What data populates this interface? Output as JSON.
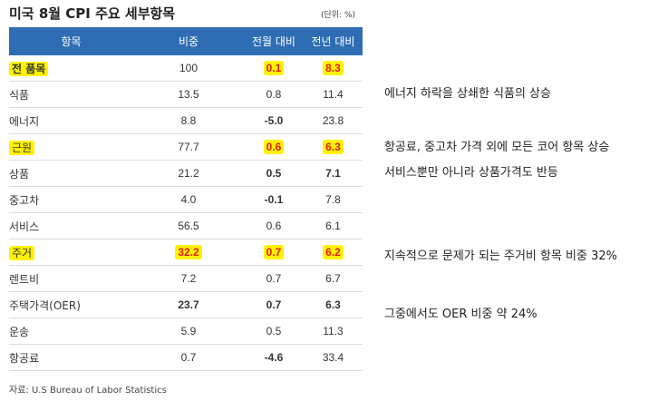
{
  "title": "미국 8월 CPI 주요 세부항목",
  "unit": "(단위: %)",
  "headers": [
    "항목",
    "비중",
    "전월 대비",
    "전년 대비"
  ],
  "rows": [
    {
      "item": "전 품목",
      "weight": "100",
      "mom": "0.1",
      "yoy": "8.3"
    },
    {
      "item": "식품",
      "weight": "13.5",
      "mom": "0.8",
      "yoy": "11.4"
    },
    {
      "item": "에너지",
      "weight": "8.8",
      "mom": "-5.0",
      "yoy": "23.8"
    },
    {
      "item": "근원",
      "weight": "77.7",
      "mom": "0.6",
      "yoy": "6.3"
    },
    {
      "item": "상품",
      "weight": "21.2",
      "mom": "0.5",
      "yoy": "7.1"
    },
    {
      "item": "중고차",
      "weight": "4.0",
      "mom": "-0.1",
      "yoy": "7.8"
    },
    {
      "item": "서비스",
      "weight": "56.5",
      "mom": "0.6",
      "yoy": "6.1"
    },
    {
      "item": "주거",
      "weight": "32.2",
      "mom": "0.7",
      "yoy": "6.2"
    },
    {
      "item": "렌트비",
      "weight": "7.2",
      "mom": "0.7",
      "yoy": "6.7"
    },
    {
      "item": "주택가격(OER)",
      "weight": "23.7",
      "mom": "0.7",
      "yoy": "6.3"
    },
    {
      "item": "운송",
      "weight": "5.9",
      "mom": "0.5",
      "yoy": "11.3"
    },
    {
      "item": "항공료",
      "weight": "0.7",
      "mom": "-4.6",
      "yoy": "33.4"
    }
  ],
  "source": "자료: U.S Bureau of Labor Statistics",
  "notes": [
    "에너지 하락을 상쇄한 식품의 상승",
    "항공료, 중고차 가격 외에 모든 코어 항목 상승",
    "서비스뿐만 아니라 상품가격도 반등",
    "지속적으로 문제가 되는 주거비 항목 비중 32%",
    "그중에서도 OER 비중 약 24%"
  ],
  "colors": {
    "header_bg": "#2e6db4",
    "highlight": "#fff200",
    "negative": "#2f6fb0",
    "emphasis": "#e11d1d"
  }
}
